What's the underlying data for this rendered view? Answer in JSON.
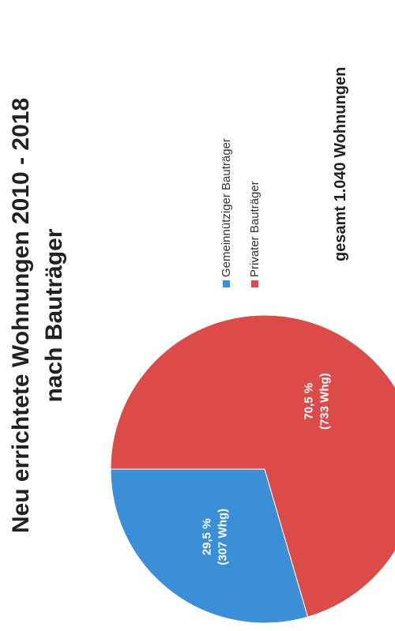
{
  "chart_data": {
    "type": "pie",
    "title": "Neu errichtete Wohnungen 2010 - 2018",
    "subtitle": "nach Bauträger",
    "slices": [
      {
        "name": "Gemeinnütziger Bauträger",
        "value": 307,
        "percent": 29.5,
        "label_percent": "29,5 %",
        "label_count": "(307 Whg)",
        "color": "#3a8fd6"
      },
      {
        "name": "Privater Bauträger",
        "value": 733,
        "percent": 70.5,
        "label_percent": "70,5 %",
        "label_count": "(733 Whg)",
        "color": "#dd4b49"
      }
    ],
    "legend_position": "right",
    "total_note": "gesamt 1.040 Wohnungen"
  }
}
